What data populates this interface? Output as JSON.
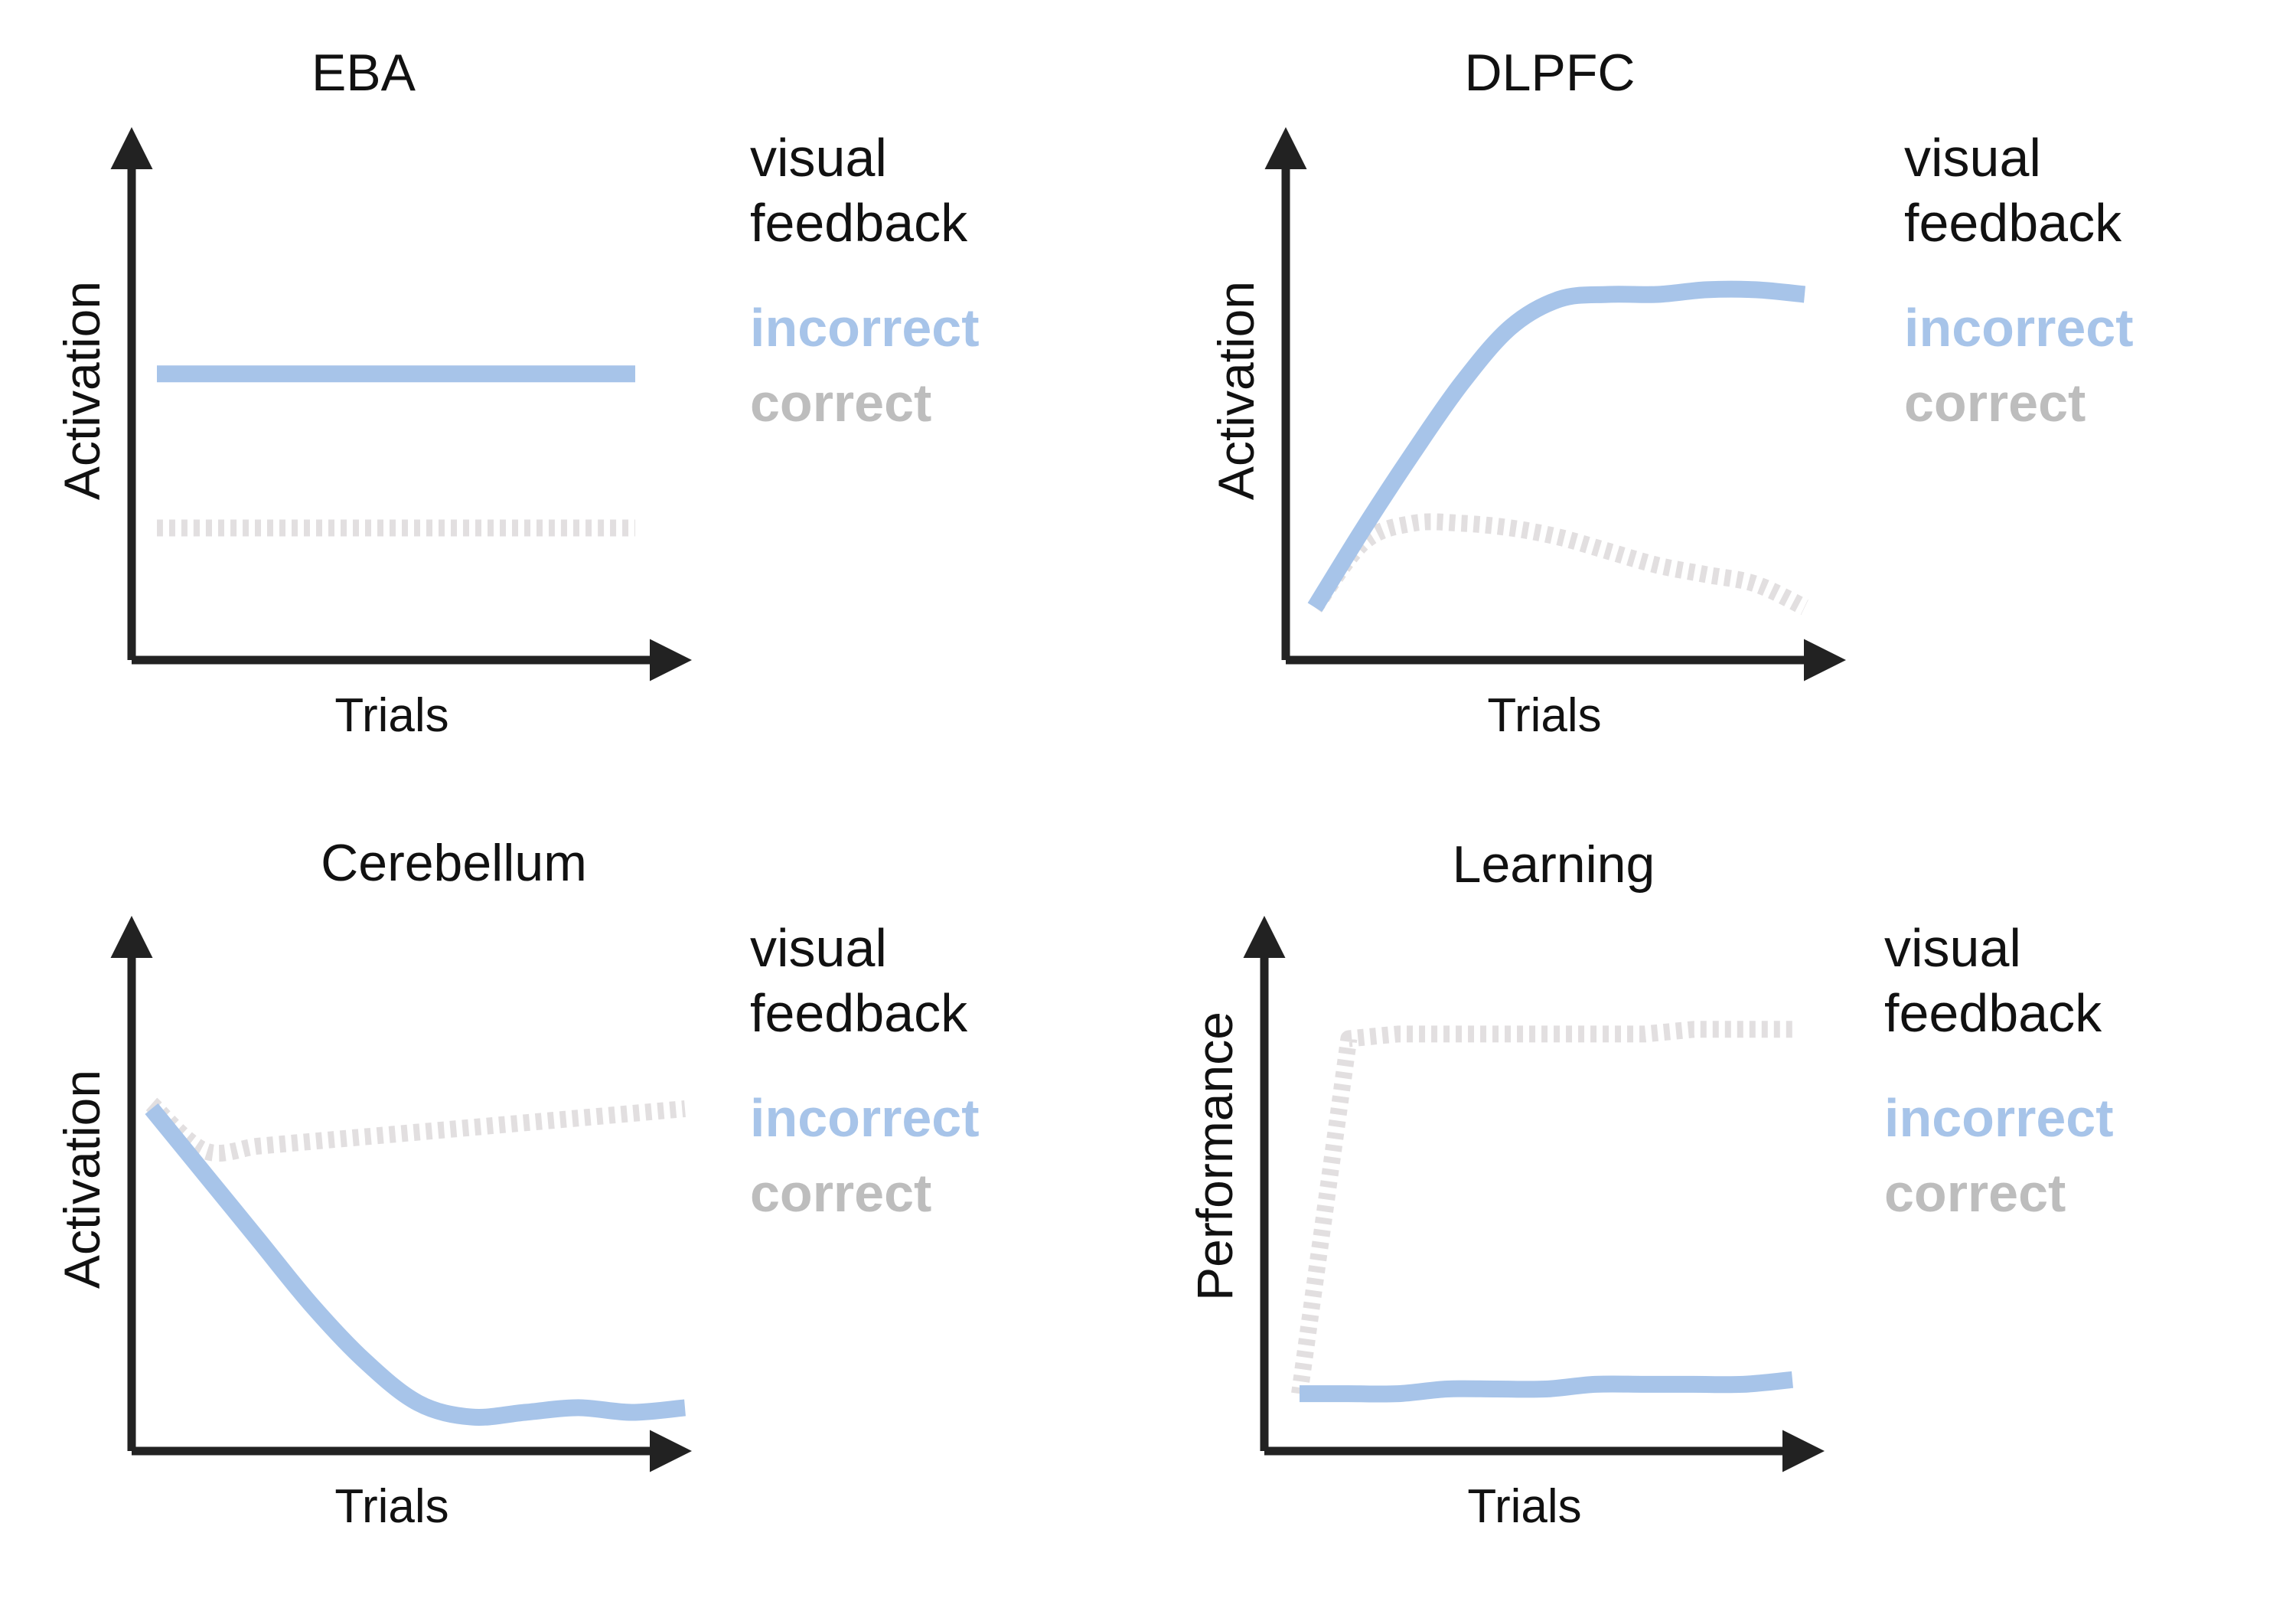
{
  "chart_data": [
    {
      "type": "line",
      "title": "EBA",
      "xlabel": "Trials",
      "ylabel": "Activation",
      "legend_title": [
        "visual",
        "feedback"
      ],
      "x": [
        0,
        0.2,
        0.4,
        0.6,
        0.8,
        1.0
      ],
      "series": [
        {
          "name": "incorrect",
          "style": "solid",
          "values": [
            0.58,
            0.58,
            0.58,
            0.58,
            0.58,
            0.58
          ]
        },
        {
          "name": "correct",
          "style": "dotted",
          "values": [
            0.25,
            0.25,
            0.25,
            0.25,
            0.25,
            0.25
          ]
        }
      ],
      "ylim": [
        0,
        1
      ],
      "grid": false,
      "legend_position": "right"
    },
    {
      "type": "line",
      "title": "DLPFC",
      "xlabel": "Trials",
      "ylabel": "Activation",
      "legend_title": [
        "visual",
        "feedback"
      ],
      "x": [
        0,
        0.1,
        0.2,
        0.3,
        0.4,
        0.5,
        0.6,
        0.7,
        0.8,
        0.9,
        1.0
      ],
      "series": [
        {
          "name": "incorrect",
          "style": "solid",
          "values": [
            0.08,
            0.25,
            0.41,
            0.56,
            0.68,
            0.74,
            0.75,
            0.75,
            0.76,
            0.76,
            0.75
          ]
        },
        {
          "name": "correct",
          "style": "dotted",
          "values": [
            0.08,
            0.22,
            0.26,
            0.26,
            0.25,
            0.23,
            0.2,
            0.17,
            0.15,
            0.13,
            0.08
          ]
        }
      ],
      "ylim": [
        0,
        1
      ],
      "grid": false,
      "legend_position": "right"
    },
    {
      "type": "line",
      "title": "Cerebellum",
      "xlabel": "Trials",
      "ylabel": "Activation",
      "legend_title": [
        "visual",
        "feedback"
      ],
      "x": [
        0,
        0.1,
        0.2,
        0.3,
        0.4,
        0.5,
        0.6,
        0.7,
        0.8,
        0.9,
        1.0
      ],
      "series": [
        {
          "name": "incorrect",
          "style": "solid",
          "values": [
            0.7,
            0.56,
            0.42,
            0.28,
            0.16,
            0.07,
            0.04,
            0.05,
            0.06,
            0.05,
            0.06
          ]
        },
        {
          "name": "correct",
          "style": "dotted",
          "values": [
            0.71,
            0.61,
            0.62,
            0.63,
            0.64,
            0.65,
            0.66,
            0.67,
            0.68,
            0.69,
            0.7
          ]
        }
      ],
      "ylim": [
        0,
        1
      ],
      "grid": false,
      "legend_position": "right"
    },
    {
      "type": "line",
      "title": "Learning",
      "xlabel": "Trials",
      "ylabel": "Performance",
      "legend_title": [
        "visual",
        "feedback"
      ],
      "x": [
        0,
        0.1,
        0.2,
        0.3,
        0.4,
        0.5,
        0.6,
        0.7,
        0.8,
        0.9,
        1.0
      ],
      "series": [
        {
          "name": "incorrect",
          "style": "solid",
          "values": [
            0.09,
            0.09,
            0.09,
            0.1,
            0.1,
            0.1,
            0.11,
            0.11,
            0.11,
            0.11,
            0.12
          ]
        },
        {
          "name": "correct",
          "style": "dotted",
          "values": [
            0.09,
            0.85,
            0.86,
            0.86,
            0.86,
            0.86,
            0.86,
            0.86,
            0.87,
            0.87,
            0.87
          ]
        }
      ],
      "ylim": [
        0,
        1
      ],
      "grid": false,
      "legend_position": "right"
    }
  ],
  "colors": {
    "incorrect": "#a7c4e9",
    "correct": "#bdbdbd",
    "correct_line": "#e2dfe0",
    "axis": "#222222",
    "text": "#111111"
  }
}
